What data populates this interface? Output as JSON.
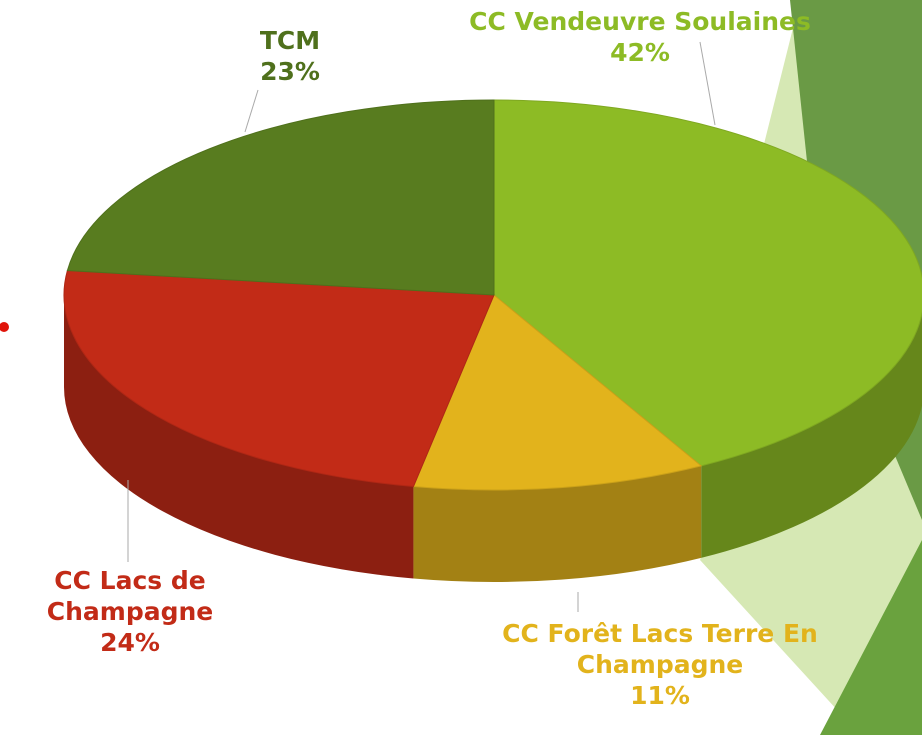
{
  "chart_data": {
    "type": "pie",
    "categories": [
      "CC Vendeuvre Soulaines",
      "CC Forêt Lacs Terre En Champagne",
      "CC Lacs de Champagne",
      "TCM"
    ],
    "values": [
      42,
      11,
      24,
      23
    ],
    "value_labels": [
      "42%",
      "11%",
      "24%",
      "23%"
    ],
    "colors": [
      "#8dbb25",
      "#e2b31c",
      "#c22b17",
      "#587c1f"
    ]
  }
}
